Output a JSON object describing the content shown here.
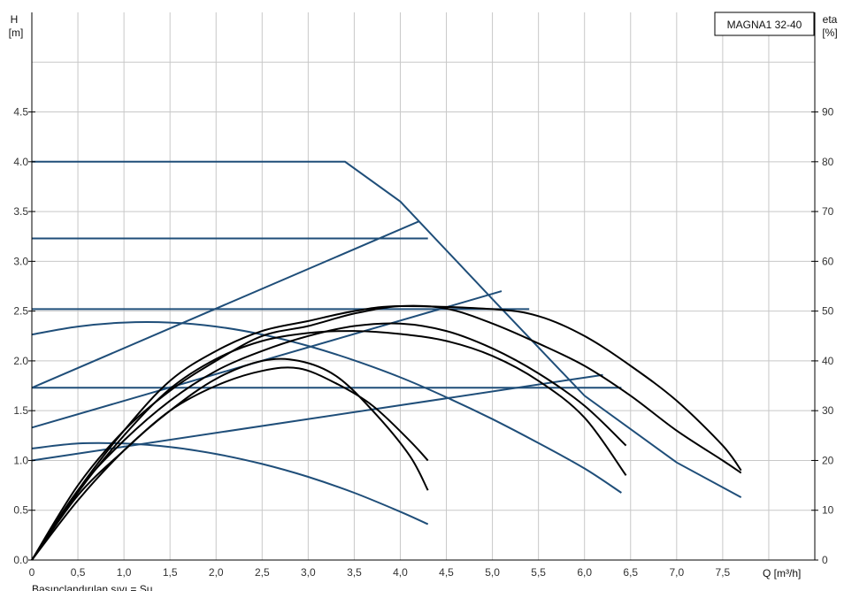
{
  "chart_data": {
    "type": "line",
    "title": "MAGNA1 32-40",
    "footnote": "Basınçlandırılan sıvı = Su",
    "left_axis": {
      "label_line1": "H",
      "label_line2": "[m]",
      "range": [
        0,
        5.5
      ],
      "ticks": [
        0,
        0.5,
        1.0,
        1.5,
        2.0,
        2.5,
        3.0,
        3.5,
        4.0,
        4.5
      ],
      "tick_labels": [
        "0.0",
        "0.5",
        "1.0",
        "1.5",
        "2.0",
        "2.5",
        "3.0",
        "3.5",
        "4.0",
        "4.5"
      ]
    },
    "right_axis": {
      "label_line1": "eta",
      "label_line2": "[%]",
      "range": [
        0,
        110
      ],
      "ticks": [
        0,
        10,
        20,
        30,
        40,
        50,
        60,
        70,
        80,
        90
      ],
      "tick_labels": [
        "0",
        "10",
        "20",
        "30",
        "40",
        "50",
        "60",
        "70",
        "80",
        "90"
      ]
    },
    "x_axis": {
      "label": "Q [m³/h]",
      "range": [
        0,
        8.5
      ],
      "ticks": [
        0,
        0.5,
        1.0,
        1.5,
        2.0,
        2.5,
        3.0,
        3.5,
        4.0,
        4.5,
        5.0,
        5.5,
        6.0,
        6.5,
        7.0,
        7.5
      ],
      "tick_labels": [
        "0",
        "0,5",
        "1,0",
        "1,5",
        "2,0",
        "2,5",
        "3,0",
        "3,5",
        "4,0",
        "4,5",
        "5,0",
        "5,5",
        "6,0",
        "6,5",
        "7,0",
        "7,5"
      ]
    },
    "grid": true,
    "colors": {
      "blue": "#1f4e79",
      "black": "#000000",
      "grid": "#c8c8c8",
      "axis": "#000000"
    },
    "series": [
      {
        "color": "blue",
        "axis": "H",
        "points": [
          [
            0,
            4.0
          ],
          [
            3.4,
            4.0
          ],
          [
            4.0,
            3.6
          ],
          [
            5.0,
            2.62
          ],
          [
            6.0,
            1.65
          ],
          [
            7.0,
            0.98
          ],
          [
            7.7,
            0.63
          ]
        ]
      },
      {
        "color": "blue",
        "axis": "H",
        "points": [
          [
            0,
            3.23
          ],
          [
            4.3,
            3.23
          ]
        ]
      },
      {
        "color": "blue",
        "axis": "H",
        "points": [
          [
            0,
            2.52
          ],
          [
            5.4,
            2.52
          ]
        ]
      },
      {
        "color": "blue",
        "axis": "H",
        "points": [
          [
            0,
            1.73
          ],
          [
            6.4,
            1.73
          ]
        ]
      },
      {
        "color": "blue",
        "axis": "H",
        "points": [
          [
            0,
            1.73
          ],
          [
            4.2,
            3.4
          ]
        ]
      },
      {
        "color": "blue",
        "axis": "H",
        "points": [
          [
            0,
            1.33
          ],
          [
            5.1,
            2.7
          ]
        ]
      },
      {
        "color": "blue",
        "axis": "H",
        "points": [
          [
            0,
            1.0
          ],
          [
            6.2,
            1.86
          ]
        ]
      },
      {
        "color": "blue",
        "axis": "eta",
        "points": [
          [
            0,
            45.3
          ],
          [
            0.5,
            46.9
          ],
          [
            1.0,
            47.7
          ],
          [
            1.5,
            47.7
          ],
          [
            2.0,
            46.9
          ],
          [
            2.5,
            45.3
          ],
          [
            3.0,
            43.0
          ],
          [
            3.5,
            40.1
          ],
          [
            4.0,
            36.7
          ],
          [
            4.5,
            32.7
          ],
          [
            5.0,
            28.3
          ],
          [
            5.5,
            23.5
          ],
          [
            6.0,
            18.4
          ],
          [
            6.4,
            13.5
          ]
        ]
      },
      {
        "color": "blue",
        "axis": "eta",
        "points": [
          [
            0,
            22.4
          ],
          [
            0.5,
            23.4
          ],
          [
            1.0,
            23.4
          ],
          [
            1.5,
            22.7
          ],
          [
            2.0,
            21.3
          ],
          [
            2.5,
            19.3
          ],
          [
            3.0,
            16.7
          ],
          [
            3.5,
            13.5
          ],
          [
            4.0,
            9.7
          ],
          [
            4.3,
            7.2
          ]
        ]
      },
      {
        "color": "black",
        "axis": "H",
        "points": [
          [
            0,
            0
          ],
          [
            0.5,
            0.7
          ],
          [
            1.0,
            1.3
          ],
          [
            1.5,
            1.8
          ],
          [
            2.0,
            2.1
          ],
          [
            2.5,
            2.3
          ],
          [
            3.0,
            2.4
          ],
          [
            3.5,
            2.5
          ],
          [
            4.0,
            2.55
          ],
          [
            5.0,
            2.52
          ],
          [
            5.5,
            2.45
          ],
          [
            6.0,
            2.25
          ],
          [
            6.5,
            1.95
          ],
          [
            7.0,
            1.6
          ],
          [
            7.5,
            1.15
          ],
          [
            7.7,
            0.9
          ]
        ]
      },
      {
        "color": "black",
        "axis": "H",
        "points": [
          [
            0,
            0
          ],
          [
            0.5,
            0.68
          ],
          [
            1.0,
            1.25
          ],
          [
            1.5,
            1.72
          ],
          [
            2.0,
            2.02
          ],
          [
            2.5,
            2.2
          ],
          [
            3.0,
            2.28
          ],
          [
            3.5,
            2.3
          ],
          [
            4.0,
            2.27
          ],
          [
            4.5,
            2.2
          ],
          [
            5.0,
            2.05
          ],
          [
            5.5,
            1.8
          ],
          [
            6.0,
            1.43
          ],
          [
            6.45,
            0.85
          ]
        ]
      },
      {
        "color": "black",
        "axis": "H",
        "points": [
          [
            0,
            0
          ],
          [
            0.5,
            0.6
          ],
          [
            1.0,
            1.1
          ],
          [
            1.5,
            1.5
          ],
          [
            2.0,
            1.82
          ],
          [
            2.5,
            2.0
          ],
          [
            2.9,
            2.0
          ],
          [
            3.3,
            1.85
          ],
          [
            3.7,
            1.5
          ],
          [
            4.1,
            1.05
          ],
          [
            4.3,
            0.7
          ]
        ]
      },
      {
        "color": "black",
        "axis": "eta",
        "points": [
          [
            0,
            0
          ],
          [
            0.5,
            15
          ],
          [
            1.0,
            26
          ],
          [
            1.5,
            34
          ],
          [
            2.0,
            40
          ],
          [
            2.5,
            45
          ],
          [
            3.0,
            47
          ],
          [
            3.5,
            49.5
          ],
          [
            4.0,
            51
          ],
          [
            4.5,
            50.5
          ],
          [
            5.0,
            47.5
          ],
          [
            5.5,
            43.5
          ],
          [
            6.0,
            39
          ],
          [
            6.5,
            33
          ],
          [
            7.0,
            26
          ],
          [
            7.5,
            20
          ],
          [
            7.7,
            17.5
          ]
        ]
      },
      {
        "color": "black",
        "axis": "eta",
        "points": [
          [
            0,
            0
          ],
          [
            0.5,
            14
          ],
          [
            1.0,
            24
          ],
          [
            1.5,
            32
          ],
          [
            2.0,
            38
          ],
          [
            2.5,
            42
          ],
          [
            3.0,
            45
          ],
          [
            3.5,
            47
          ],
          [
            4.0,
            47.5
          ],
          [
            4.5,
            46
          ],
          [
            5.0,
            42.5
          ],
          [
            5.5,
            37.5
          ],
          [
            6.0,
            31
          ],
          [
            6.45,
            23
          ]
        ]
      },
      {
        "color": "black",
        "axis": "eta",
        "points": [
          [
            0,
            0
          ],
          [
            0.5,
            13
          ],
          [
            1.0,
            22
          ],
          [
            1.5,
            30
          ],
          [
            2.0,
            35
          ],
          [
            2.5,
            38
          ],
          [
            2.9,
            38.5
          ],
          [
            3.3,
            35.5
          ],
          [
            3.7,
            31
          ],
          [
            4.1,
            24
          ],
          [
            4.3,
            20
          ]
        ]
      }
    ]
  }
}
